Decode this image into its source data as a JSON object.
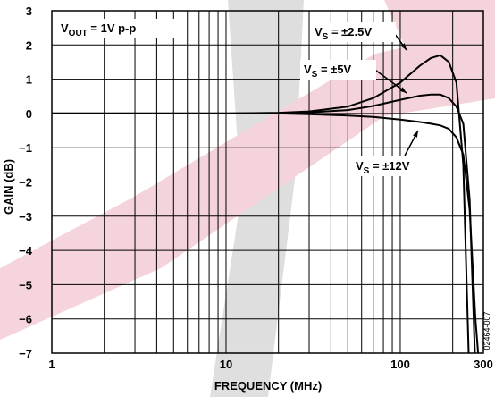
{
  "chart_data": {
    "type": "line",
    "xlabel": "FREQUENCY (MHz)",
    "ylabel": "GAIN (dB)",
    "annotation": {
      "main": "V",
      "sub": "OUT",
      "rest": " = 1V p-p"
    },
    "figure_id": "02464-007",
    "log_x": true,
    "grid": true,
    "xlim": [
      1,
      300
    ],
    "ylim": [
      -7,
      3
    ],
    "xticks": [
      1,
      10,
      100,
      300
    ],
    "xminor": [
      2,
      3,
      4,
      5,
      6,
      7,
      8,
      9,
      20,
      30,
      40,
      50,
      60,
      70,
      80,
      90,
      200
    ],
    "yticks": [
      3,
      2,
      1,
      0,
      {
        "value": -1,
        "label": "−1"
      },
      {
        "value": -2,
        "label": "−2"
      },
      {
        "value": -3,
        "label": "−3"
      },
      {
        "value": -4,
        "label": "−4"
      },
      {
        "value": -5,
        "label": "−5"
      },
      {
        "value": -6,
        "label": "−6"
      },
      {
        "value": -7,
        "label": "−7"
      }
    ],
    "x": [
      1,
      10,
      20,
      30,
      50,
      70,
      100,
      130,
      150,
      170,
      190,
      210,
      230,
      250,
      270,
      290
    ],
    "series": [
      {
        "label": {
          "main": "V",
          "sub": "S",
          "rest": " = ±2.5V"
        },
        "color": "#000000",
        "values": [
          0,
          0,
          0.02,
          0.06,
          0.2,
          0.45,
          0.9,
          1.4,
          1.62,
          1.7,
          1.5,
          0.9,
          -1.5,
          -8,
          null,
          null
        ]
      },
      {
        "label": {
          "main": "V",
          "sub": "S",
          "rest": " = ±5V"
        },
        "color": "#000000",
        "values": [
          0,
          0,
          0.01,
          0.03,
          0.1,
          0.22,
          0.4,
          0.52,
          0.55,
          0.55,
          0.45,
          0.2,
          -0.3,
          -2.5,
          -7.5,
          null
        ]
      },
      {
        "label": {
          "main": "V",
          "sub": "S",
          "rest": " = ±12V"
        },
        "color": "#000000",
        "values": [
          0,
          0,
          0,
          -0.02,
          -0.06,
          -0.1,
          -0.18,
          -0.25,
          -0.3,
          -0.35,
          -0.45,
          -0.7,
          -1.2,
          -2.8,
          -6,
          -8
        ]
      }
    ]
  }
}
